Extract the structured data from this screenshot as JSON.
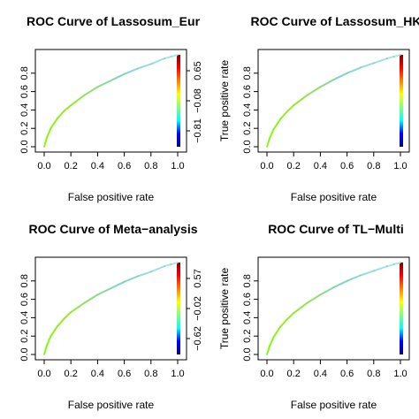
{
  "chart_data": [
    {
      "type": "line",
      "title": "ROC Curve of Lassosum_Eur",
      "xlabel": "False positive rate",
      "ylabel": "",
      "xlim": [
        0,
        1
      ],
      "ylim": [
        0,
        1
      ],
      "x_ticks": [
        "0.0",
        "0.2",
        "0.4",
        "0.6",
        "0.8",
        "1.0"
      ],
      "y_ticks": [
        "0.0",
        "0.2",
        "0.4",
        "0.6",
        "0.8"
      ],
      "colorbar_ticks": [
        "0.65",
        "−0.08",
        "−0.81"
      ],
      "series": [
        {
          "x": [
            0,
            0.02,
            0.05,
            0.1,
            0.15,
            0.2,
            0.3,
            0.4,
            0.5,
            0.6,
            0.7,
            0.8,
            0.9,
            0.95,
            1.0
          ],
          "y": [
            0,
            0.1,
            0.2,
            0.31,
            0.39,
            0.45,
            0.56,
            0.65,
            0.72,
            0.79,
            0.85,
            0.9,
            0.96,
            0.98,
            1.0
          ]
        }
      ]
    },
    {
      "type": "line",
      "title": "ROC Curve of Lassosum_HK",
      "xlabel": "False positive rate",
      "ylabel": "True positive rate",
      "xlim": [
        0,
        1
      ],
      "ylim": [
        0,
        1
      ],
      "x_ticks": [
        "0.0",
        "0.2",
        "0.4",
        "0.6",
        "0.8",
        "1.0"
      ],
      "y_ticks": [
        "0.0",
        "0.2",
        "0.4",
        "0.6",
        "0.8"
      ],
      "colorbar_ticks": [],
      "series": [
        {
          "x": [
            0,
            0.02,
            0.05,
            0.1,
            0.15,
            0.2,
            0.3,
            0.4,
            0.5,
            0.6,
            0.7,
            0.8,
            0.9,
            0.95,
            1.0
          ],
          "y": [
            0,
            0.09,
            0.19,
            0.3,
            0.38,
            0.45,
            0.56,
            0.65,
            0.73,
            0.8,
            0.86,
            0.91,
            0.96,
            0.98,
            1.0
          ]
        }
      ]
    },
    {
      "type": "line",
      "title": "ROC Curve of Meta−analysis",
      "xlabel": "False positive rate",
      "ylabel": "",
      "xlim": [
        0,
        1
      ],
      "ylim": [
        0,
        1
      ],
      "x_ticks": [
        "0.0",
        "0.2",
        "0.4",
        "0.6",
        "0.8",
        "1.0"
      ],
      "y_ticks": [
        "0.0",
        "0.2",
        "0.4",
        "0.6",
        "0.8"
      ],
      "colorbar_ticks": [
        "0.57",
        "−0.02",
        "−0.62"
      ],
      "series": [
        {
          "x": [
            0,
            0.02,
            0.05,
            0.1,
            0.15,
            0.2,
            0.3,
            0.4,
            0.5,
            0.6,
            0.7,
            0.8,
            0.9,
            0.95,
            1.0
          ],
          "y": [
            0,
            0.1,
            0.2,
            0.31,
            0.39,
            0.46,
            0.56,
            0.65,
            0.72,
            0.79,
            0.85,
            0.9,
            0.96,
            0.98,
            1.0
          ]
        }
      ]
    },
    {
      "type": "line",
      "title": "ROC Curve of TL−Multi",
      "xlabel": "False positive rate",
      "ylabel": "True positive rate",
      "xlim": [
        0,
        1
      ],
      "ylim": [
        0,
        1
      ],
      "x_ticks": [
        "0.0",
        "0.2",
        "0.4",
        "0.6",
        "0.8",
        "1.0"
      ],
      "y_ticks": [
        "0.0",
        "0.2",
        "0.4",
        "0.6",
        "0.8"
      ],
      "colorbar_ticks": [],
      "series": [
        {
          "x": [
            0,
            0.02,
            0.05,
            0.1,
            0.15,
            0.2,
            0.3,
            0.4,
            0.5,
            0.6,
            0.7,
            0.8,
            0.9,
            0.95,
            1.0
          ],
          "y": [
            0,
            0.09,
            0.19,
            0.3,
            0.38,
            0.45,
            0.56,
            0.65,
            0.73,
            0.8,
            0.86,
            0.91,
            0.96,
            0.98,
            1.0
          ]
        }
      ]
    }
  ],
  "colors": {
    "curve_gradient": [
      "#7fff00",
      "#9be82a",
      "#7fd4c8",
      "#aae8ff"
    ],
    "colorbar_gradient": [
      "#00007f",
      "#0000ff",
      "#00ffff",
      "#7fff7f",
      "#ffff00",
      "#ff7f00",
      "#ff0000",
      "#7f0000"
    ]
  }
}
